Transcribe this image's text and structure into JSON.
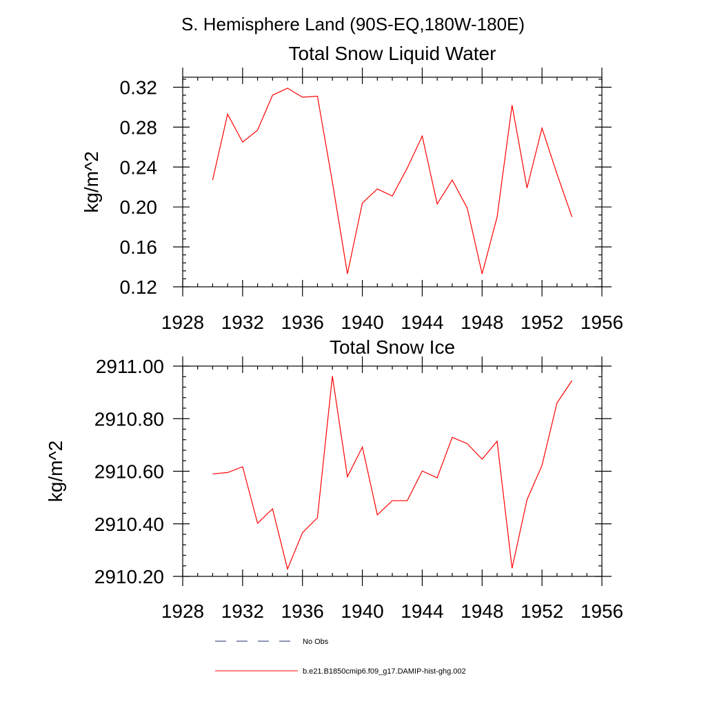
{
  "page_title": "S. Hemisphere Land (90S-EQ,180W-180E)",
  "legend": {
    "items": [
      {
        "label": "No Obs",
        "style": "dashed",
        "color": "#1a2a6c"
      },
      {
        "label": "b.e21.B1850cmip6.f09_g17.DAMIP-hist-ghg.002",
        "style": "solid",
        "color": "#ff0000"
      }
    ]
  },
  "chart_data": [
    {
      "type": "line",
      "title": "Total Snow Liquid Water",
      "xlabel": "",
      "ylabel": "kg/m^2",
      "xlim": [
        1928,
        1956
      ],
      "ylim": [
        0.12,
        0.33
      ],
      "x_ticks": [
        1928,
        1932,
        1936,
        1940,
        1944,
        1948,
        1952,
        1956
      ],
      "x_tick_labels": [
        "1928",
        "1932",
        "1936",
        "1940",
        "1944",
        "1948",
        "1952",
        "1956"
      ],
      "y_ticks": [
        0.12,
        0.16,
        0.2,
        0.24,
        0.28,
        0.32
      ],
      "y_tick_labels": [
        "0.12",
        "0.16",
        "0.20",
        "0.24",
        "0.28",
        "0.32"
      ],
      "series": [
        {
          "name": "b.e21.B1850cmip6.f09_g17.DAMIP-hist-ghg.002",
          "color": "#ff0000",
          "x": [
            1930,
            1931,
            1932,
            1933,
            1934,
            1935,
            1936,
            1937,
            1938,
            1939,
            1940,
            1941,
            1942,
            1943,
            1944,
            1945,
            1946,
            1947,
            1948,
            1949,
            1950,
            1951,
            1952,
            1953,
            1954
          ],
          "y": [
            0.227,
            0.293,
            0.265,
            0.277,
            0.312,
            0.319,
            0.31,
            0.311,
            0.225,
            0.133,
            0.204,
            0.218,
            0.211,
            0.239,
            0.271,
            0.203,
            0.227,
            0.199,
            0.133,
            0.19,
            0.302,
            0.219,
            0.279,
            0.233,
            0.19
          ]
        }
      ]
    },
    {
      "type": "line",
      "title": "Total Snow Ice",
      "xlabel": "",
      "ylabel": "kg/m^2",
      "xlim": [
        1928,
        1956
      ],
      "ylim": [
        2910.2,
        2911.0
      ],
      "x_ticks": [
        1928,
        1932,
        1936,
        1940,
        1944,
        1948,
        1952,
        1956
      ],
      "x_tick_labels": [
        "1928",
        "1932",
        "1936",
        "1940",
        "1944",
        "1948",
        "1952",
        "1956"
      ],
      "y_ticks": [
        2910.2,
        2910.4,
        2910.6,
        2910.8,
        2911.0
      ],
      "y_tick_labels": [
        "2910.20",
        "2910.40",
        "2910.60",
        "2910.80",
        "2911.00"
      ],
      "series": [
        {
          "name": "b.e21.B1850cmip6.f09_g17.DAMIP-hist-ghg.002",
          "color": "#ff0000",
          "x": [
            1930,
            1931,
            1932,
            1933,
            1934,
            1935,
            1936,
            1937,
            1938,
            1939,
            1940,
            1941,
            1942,
            1943,
            1944,
            1945,
            1946,
            1947,
            1948,
            1949,
            1950,
            1951,
            1952,
            1953,
            1954
          ],
          "y": [
            2910.59,
            2910.595,
            2910.617,
            2910.402,
            2910.457,
            2910.228,
            2910.366,
            2910.423,
            2910.962,
            2910.579,
            2910.692,
            2910.434,
            2910.488,
            2910.488,
            2910.601,
            2910.575,
            2910.729,
            2910.705,
            2910.646,
            2910.714,
            2910.231,
            2910.492,
            2910.622,
            2910.86,
            2910.945
          ]
        }
      ]
    }
  ]
}
